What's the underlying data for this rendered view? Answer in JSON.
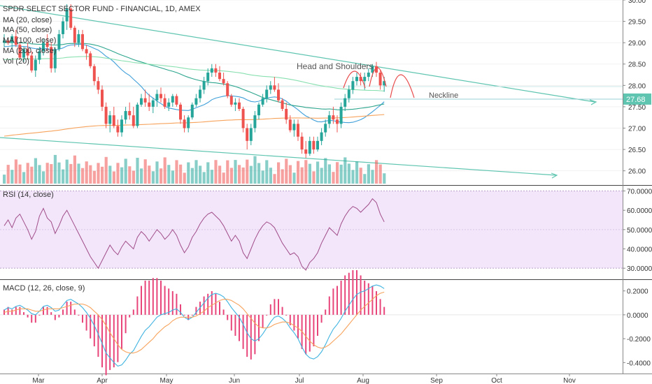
{
  "chart_data": {
    "type": "candlestick",
    "title": "SPDR SELECT SECTOR FUND - FINANCIAL, 1D, AMEX",
    "indicators_main": [
      "MA (20, close)",
      "MA (50, close)",
      "MA (100, close)",
      "MA (200, close)",
      "Vol (20)"
    ],
    "last_price_label": "27.68",
    "price_axis": {
      "min": 25.7,
      "max": 30.0,
      "ticks": [
        "30.00",
        "29.50",
        "29.00",
        "28.50",
        "28.00",
        "27.50",
        "27.00",
        "26.50",
        "26.00"
      ]
    },
    "x_axis_labels": [
      "Mar",
      "Apr",
      "May",
      "Jun",
      "Jul",
      "Aug",
      "Sep",
      "Oct",
      "Nov"
    ],
    "annotations": {
      "pattern": "Head and Shoulders",
      "neckline": "Neckline"
    },
    "candles": [
      [
        29.0,
        29.2,
        28.9,
        29.05
      ],
      [
        29.05,
        29.1,
        28.95,
        29.0
      ],
      [
        29.0,
        29.2,
        28.85,
        29.15
      ],
      [
        29.15,
        29.3,
        28.9,
        28.95
      ],
      [
        28.95,
        29.0,
        28.6,
        28.65
      ],
      [
        28.65,
        28.9,
        28.55,
        28.85
      ],
      [
        28.85,
        29.0,
        28.6,
        28.7
      ],
      [
        28.7,
        28.8,
        28.3,
        28.35
      ],
      [
        28.35,
        28.7,
        28.2,
        28.6
      ],
      [
        28.6,
        28.9,
        28.5,
        28.8
      ],
      [
        28.8,
        29.1,
        28.7,
        29.0
      ],
      [
        29.0,
        29.2,
        28.8,
        28.9
      ],
      [
        28.9,
        29.0,
        28.3,
        28.4
      ],
      [
        28.4,
        28.9,
        28.3,
        28.85
      ],
      [
        28.85,
        29.3,
        28.8,
        29.2
      ],
      [
        29.2,
        29.6,
        29.1,
        29.5
      ],
      [
        29.5,
        29.9,
        29.3,
        29.8
      ],
      [
        29.8,
        29.9,
        29.3,
        29.35
      ],
      [
        29.35,
        29.4,
        28.9,
        29.0
      ],
      [
        29.0,
        29.3,
        28.9,
        29.2
      ],
      [
        29.2,
        29.3,
        28.8,
        28.85
      ],
      [
        28.85,
        28.95,
        28.6,
        28.75
      ],
      [
        28.75,
        28.8,
        28.4,
        28.45
      ],
      [
        28.45,
        28.5,
        28.0,
        28.1
      ],
      [
        28.1,
        28.2,
        27.8,
        27.9
      ],
      [
        27.9,
        28.0,
        27.4,
        27.5
      ],
      [
        27.5,
        27.6,
        27.0,
        27.1
      ],
      [
        27.1,
        27.4,
        26.9,
        27.3
      ],
      [
        27.3,
        27.5,
        27.0,
        27.05
      ],
      [
        27.05,
        27.2,
        26.8,
        26.9
      ],
      [
        26.9,
        27.3,
        26.8,
        27.2
      ],
      [
        27.2,
        27.5,
        27.1,
        27.4
      ],
      [
        27.4,
        27.6,
        27.2,
        27.3
      ],
      [
        27.3,
        27.5,
        27.0,
        27.05
      ],
      [
        27.05,
        27.6,
        27.0,
        27.55
      ],
      [
        27.55,
        27.8,
        27.5,
        27.7
      ],
      [
        27.7,
        27.9,
        27.5,
        27.6
      ],
      [
        27.6,
        27.8,
        27.4,
        27.5
      ],
      [
        27.5,
        27.7,
        27.35,
        27.65
      ],
      [
        27.65,
        27.9,
        27.5,
        27.8
      ],
      [
        27.8,
        27.95,
        27.6,
        27.7
      ],
      [
        27.7,
        27.8,
        27.45,
        27.5
      ],
      [
        27.5,
        27.7,
        27.4,
        27.6
      ],
      [
        27.6,
        27.8,
        27.5,
        27.75
      ],
      [
        27.75,
        27.8,
        27.5,
        27.55
      ],
      [
        27.55,
        27.6,
        27.1,
        27.2
      ],
      [
        27.2,
        27.3,
        26.9,
        27.0
      ],
      [
        27.0,
        27.3,
        26.9,
        27.25
      ],
      [
        27.25,
        27.6,
        27.2,
        27.55
      ],
      [
        27.55,
        27.8,
        27.5,
        27.7
      ],
      [
        27.7,
        28.0,
        27.6,
        27.9
      ],
      [
        27.9,
        28.2,
        27.8,
        28.1
      ],
      [
        28.1,
        28.4,
        28.0,
        28.3
      ],
      [
        28.3,
        28.5,
        28.2,
        28.4
      ],
      [
        28.4,
        28.5,
        28.2,
        28.3
      ],
      [
        28.3,
        28.45,
        28.1,
        28.15
      ],
      [
        28.15,
        28.3,
        28.0,
        28.05
      ],
      [
        28.05,
        28.1,
        27.7,
        27.75
      ],
      [
        27.75,
        27.8,
        27.5,
        27.55
      ],
      [
        27.55,
        27.7,
        27.4,
        27.6
      ],
      [
        27.6,
        27.7,
        27.4,
        27.45
      ],
      [
        27.45,
        27.5,
        26.9,
        27.0
      ],
      [
        27.0,
        27.1,
        26.5,
        26.7
      ],
      [
        26.7,
        27.1,
        26.6,
        27.0
      ],
      [
        27.0,
        27.4,
        26.9,
        27.3
      ],
      [
        27.3,
        27.6,
        27.2,
        27.55
      ],
      [
        27.55,
        27.8,
        27.5,
        27.7
      ],
      [
        27.7,
        28.0,
        27.6,
        27.9
      ],
      [
        27.9,
        28.1,
        27.8,
        28.0
      ],
      [
        28.0,
        28.2,
        27.85,
        27.9
      ],
      [
        27.9,
        28.05,
        27.6,
        27.65
      ],
      [
        27.65,
        27.7,
        27.4,
        27.45
      ],
      [
        27.45,
        27.6,
        27.1,
        27.2
      ],
      [
        27.2,
        27.3,
        26.9,
        26.95
      ],
      [
        26.95,
        27.2,
        26.8,
        27.1
      ],
      [
        27.1,
        27.2,
        26.7,
        26.8
      ],
      [
        26.8,
        26.9,
        26.4,
        26.5
      ],
      [
        26.5,
        26.7,
        26.3,
        26.4
      ],
      [
        26.4,
        26.8,
        26.35,
        26.7
      ],
      [
        26.7,
        26.8,
        26.4,
        26.5
      ],
      [
        26.5,
        26.8,
        26.45,
        26.7
      ],
      [
        26.7,
        27.0,
        26.6,
        26.9
      ],
      [
        26.9,
        27.2,
        26.8,
        27.1
      ],
      [
        27.1,
        27.4,
        27.0,
        27.3
      ],
      [
        27.3,
        27.5,
        27.1,
        27.2
      ],
      [
        27.2,
        27.3,
        26.9,
        27.1
      ],
      [
        27.1,
        27.6,
        27.0,
        27.5
      ],
      [
        27.5,
        27.8,
        27.4,
        27.7
      ],
      [
        27.7,
        28.0,
        27.6,
        27.9
      ],
      [
        27.9,
        28.2,
        27.8,
        28.1
      ],
      [
        28.1,
        28.3,
        28.0,
        28.2
      ],
      [
        28.2,
        28.3,
        28.0,
        28.1
      ],
      [
        28.1,
        28.3,
        27.9,
        28.2
      ],
      [
        28.2,
        28.4,
        28.1,
        28.3
      ],
      [
        28.3,
        28.5,
        28.2,
        28.45
      ],
      [
        28.45,
        28.55,
        28.2,
        28.3
      ],
      [
        28.3,
        28.35,
        27.9,
        28.0
      ],
      [
        28.0,
        28.2,
        27.85,
        28.1
      ]
    ],
    "volume_colors": {
      "up": "#7fd0c0",
      "down": "#f4a0a8"
    },
    "colors": {
      "up": "#26a69a",
      "down": "#ef5350",
      "ma20": "#3f9fd9",
      "ma50": "#2ca58d",
      "ma100": "#88e0b0",
      "ma200": "#f7a35c",
      "trend": "#5fc5b0",
      "hs_arc": "#e84a4a",
      "rsi_line": "#a04d88",
      "rsi_band": "#f3e6fb",
      "macd_line": "#3fb3e0",
      "signal_line": "#f7a35c",
      "hist": "#e8457a",
      "price_tag": "#5fc5b0"
    },
    "rsi": {
      "title": "RSI (14, close)",
      "axis_ticks": [
        "70.0000",
        "60.0000",
        "50.0000",
        "40.0000",
        "30.0000"
      ],
      "range": [
        25,
        72
      ],
      "band": [
        30,
        70
      ],
      "values": [
        52,
        55,
        51,
        56,
        58,
        54,
        50,
        45,
        49,
        57,
        61,
        56,
        54,
        48,
        52,
        57,
        60,
        56,
        52,
        48,
        44,
        40,
        36,
        33,
        30,
        34,
        38,
        42,
        39,
        37,
        41,
        44,
        42,
        40,
        46,
        49,
        47,
        44,
        47,
        50,
        48,
        45,
        47,
        50,
        47,
        42,
        38,
        41,
        46,
        49,
        53,
        56,
        58,
        59,
        57,
        55,
        52,
        48,
        44,
        47,
        44,
        38,
        35,
        40,
        45,
        49,
        52,
        54,
        53,
        51,
        47,
        43,
        40,
        37,
        38,
        36,
        31,
        29,
        33,
        35,
        38,
        43,
        47,
        51,
        49,
        47,
        53,
        57,
        60,
        62,
        61,
        59,
        61,
        63,
        66,
        64,
        58,
        54
      ]
    },
    "macd": {
      "title": "MACD (12, 26, close, 9)",
      "axis_ticks": [
        "0.2000",
        "0.0000",
        "-0.2000",
        "-0.4000"
      ],
      "range": [
        -0.48,
        0.28
      ],
      "macd_line": [
        0.04,
        0.06,
        0.05,
        0.07,
        0.08,
        0.06,
        0.04,
        0.01,
        0.0,
        0.03,
        0.07,
        0.08,
        0.06,
        0.03,
        0.04,
        0.08,
        0.12,
        0.13,
        0.11,
        0.09,
        0.06,
        0.02,
        -0.03,
        -0.09,
        -0.16,
        -0.24,
        -0.32,
        -0.36,
        -0.4,
        -0.43,
        -0.42,
        -0.38,
        -0.33,
        -0.3,
        -0.24,
        -0.18,
        -0.13,
        -0.1,
        -0.06,
        -0.02,
        0.0,
        0.01,
        0.02,
        0.04,
        0.05,
        0.02,
        -0.02,
        -0.04,
        -0.02,
        0.02,
        0.06,
        0.1,
        0.14,
        0.17,
        0.18,
        0.17,
        0.15,
        0.11,
        0.06,
        0.02,
        -0.02,
        -0.08,
        -0.15,
        -0.2,
        -0.22,
        -0.2,
        -0.16,
        -0.11,
        -0.06,
        -0.02,
        -0.01,
        -0.03,
        -0.06,
        -0.11,
        -0.15,
        -0.2,
        -0.27,
        -0.33,
        -0.36,
        -0.37,
        -0.35,
        -0.31,
        -0.25,
        -0.18,
        -0.12,
        -0.08,
        -0.03,
        0.03,
        0.08,
        0.13,
        0.17,
        0.19,
        0.2,
        0.22,
        0.24,
        0.25,
        0.24,
        0.22
      ],
      "signal_line": [
        0.02,
        0.03,
        0.03,
        0.04,
        0.05,
        0.05,
        0.05,
        0.04,
        0.03,
        0.03,
        0.04,
        0.05,
        0.05,
        0.05,
        0.05,
        0.06,
        0.07,
        0.08,
        0.09,
        0.09,
        0.09,
        0.08,
        0.06,
        0.03,
        0.0,
        -0.04,
        -0.09,
        -0.15,
        -0.2,
        -0.25,
        -0.29,
        -0.31,
        -0.32,
        -0.32,
        -0.31,
        -0.29,
        -0.26,
        -0.23,
        -0.2,
        -0.16,
        -0.13,
        -0.1,
        -0.08,
        -0.05,
        -0.03,
        -0.02,
        -0.02,
        -0.02,
        -0.02,
        -0.01,
        0.01,
        0.03,
        0.06,
        0.08,
        0.1,
        0.12,
        0.13,
        0.13,
        0.12,
        0.1,
        0.08,
        0.05,
        0.01,
        -0.03,
        -0.07,
        -0.1,
        -0.11,
        -0.11,
        -0.1,
        -0.08,
        -0.07,
        -0.06,
        -0.06,
        -0.07,
        -0.09,
        -0.11,
        -0.14,
        -0.18,
        -0.22,
        -0.25,
        -0.27,
        -0.28,
        -0.27,
        -0.25,
        -0.22,
        -0.19,
        -0.16,
        -0.12,
        -0.08,
        -0.04,
        0.0,
        0.04,
        0.07,
        0.1,
        0.13,
        0.16,
        0.18,
        0.19
      ]
    }
  }
}
